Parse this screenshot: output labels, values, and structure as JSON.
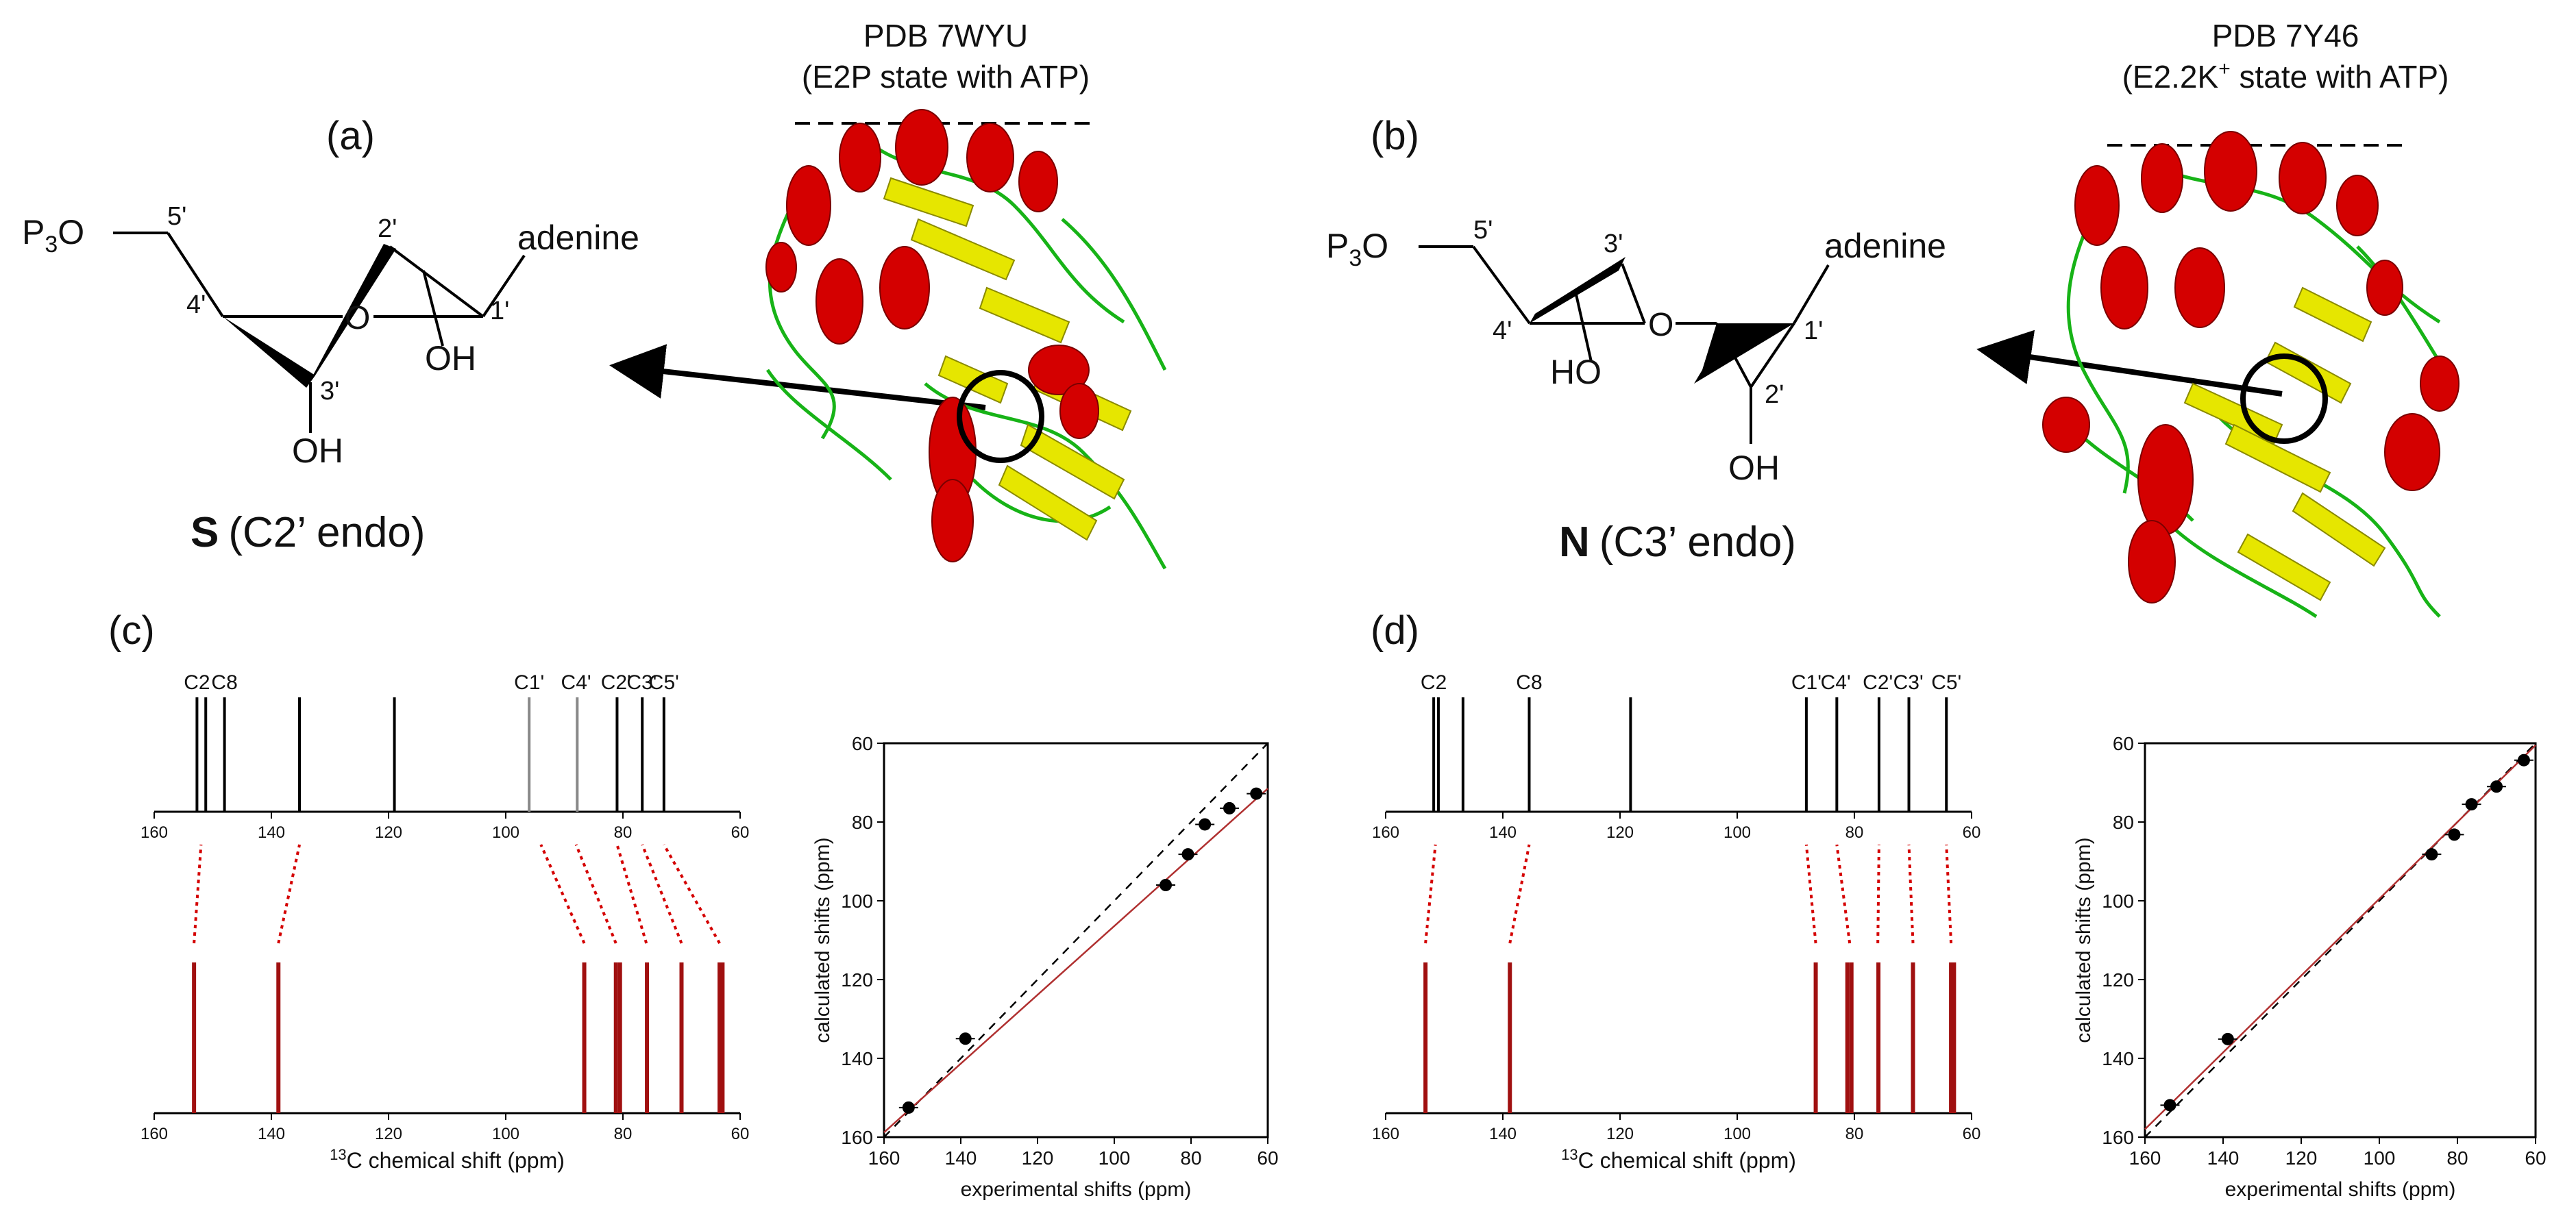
{
  "panels": {
    "a": {
      "label": "(a)",
      "pdb": "PDB 7WYU",
      "state": "(E2P state with ATP)",
      "conformation_letter": "S",
      "conformation_desc": "(C2’ endo)",
      "atoms": {
        "p3o": "P",
        "p3o_sub": "3",
        "p3o_o": "O",
        "c5": "5'",
        "c4": "4'",
        "c3": "3'",
        "c2": "2'",
        "c1": "1'",
        "ring_o": "O",
        "oh2": "OH",
        "oh3": "OH",
        "base": "adenine"
      }
    },
    "b": {
      "label": "(b)",
      "pdb": "PDB 7Y46",
      "state_pre": "(E2.2K",
      "state_sup": "+",
      "state_post": " state with ATP)",
      "conformation_letter": "N",
      "conformation_desc": "(C3’ endo)",
      "atoms": {
        "p3o": "P",
        "p3o_sub": "3",
        "p3o_o": "O",
        "c5": "5'",
        "c4": "4'",
        "c3": "3'",
        "c2": "2'",
        "c1": "1'",
        "ring_o": "O",
        "oh3": "HO",
        "oh2": "OH",
        "base": "adenine"
      }
    },
    "c": {
      "label": "(c)",
      "spectrum": {
        "top_sticks": [
          152.7,
          151.2,
          148.0,
          135.2,
          119.0,
          96.0,
          87.8,
          81.0,
          76.7,
          73.0
        ],
        "top_faint": [
          96.0,
          87.8
        ],
        "peak_labels": [
          {
            "text": "C2",
            "ppm": 152.7
          },
          {
            "text": "C8",
            "ppm": 148.0
          },
          {
            "text": "C1'",
            "ppm": 96.0
          },
          {
            "text": "C4'",
            "ppm": 88.0
          },
          {
            "text": "C2'",
            "ppm": 81.2
          },
          {
            "text": "C3'",
            "ppm": 76.8
          },
          {
            "text": "C5'",
            "ppm": 73.0
          }
        ],
        "bottom_sticks": [
          153.2,
          138.8,
          86.6,
          81.2,
          80.5,
          75.9,
          70.0,
          63.5,
          63.0
        ],
        "connectors": [
          [
            153.2,
            152.0
          ],
          [
            138.8,
            135.2
          ],
          [
            86.6,
            94.0
          ],
          [
            81.2,
            88.0
          ],
          [
            76.0,
            81.0
          ],
          [
            70.0,
            76.7
          ],
          [
            63.5,
            73.0
          ]
        ],
        "axis_ticks": [
          "160",
          "140",
          "120",
          "100",
          "80",
          "60"
        ],
        "xlabel_sup": "13",
        "xlabel": "C chemical shift (ppm)"
      },
      "correlation": {
        "xlabel": "experimental shifts",
        "xlabel_unit": "(ppm)",
        "ylabel": "calculated shifts (ppm)",
        "xlim": [
          160,
          60
        ],
        "ylim": [
          160,
          60
        ],
        "ticks": [
          "160",
          "140",
          "120",
          "100",
          "80",
          "60"
        ],
        "points": [
          [
            153.6,
            152.5
          ],
          [
            138.8,
            135.0
          ],
          [
            86.6,
            96.0
          ],
          [
            80.8,
            88.2
          ],
          [
            76.4,
            80.6
          ],
          [
            70.0,
            76.5
          ],
          [
            63.0,
            72.8
          ]
        ],
        "fit": {
          "x0": 160,
          "y0": 158.8,
          "x1": 60,
          "y1": 71.5
        }
      }
    },
    "d": {
      "label": "(d)",
      "spectrum": {
        "top_sticks": [
          151.8,
          151.0,
          146.8,
          135.5,
          118.2,
          88.2,
          83.0,
          75.8,
          70.7,
          64.3
        ],
        "peak_labels": [
          {
            "text": "C2",
            "ppm": 151.8
          },
          {
            "text": "C8",
            "ppm": 135.5
          },
          {
            "text": "C1'",
            "ppm": 88.2
          },
          {
            "text": "C4'",
            "ppm": 83.2
          },
          {
            "text": "C2'",
            "ppm": 76.0
          },
          {
            "text": "C3'",
            "ppm": 70.8
          },
          {
            "text": "C5'",
            "ppm": 64.3
          }
        ],
        "bottom_sticks": [
          153.2,
          138.8,
          86.6,
          81.2,
          80.5,
          75.9,
          70.0,
          63.5,
          63.0
        ],
        "connectors": [
          [
            153.2,
            151.5
          ],
          [
            138.8,
            135.5
          ],
          [
            86.6,
            88.2
          ],
          [
            80.8,
            83.0
          ],
          [
            76.0,
            75.8
          ],
          [
            70.0,
            70.7
          ],
          [
            63.5,
            64.3
          ]
        ],
        "axis_ticks": [
          "160",
          "140",
          "120",
          "100",
          "80",
          "60"
        ],
        "xlabel_sup": "13",
        "xlabel": "C chemical shift (ppm)"
      },
      "correlation": {
        "xlabel": "experimental shifts (ppm)",
        "ylabel": "calculated shifts (ppm)",
        "xlim": [
          160,
          60
        ],
        "ylim": [
          160,
          60
        ],
        "ticks": [
          "160",
          "140",
          "120",
          "100",
          "80",
          "60"
        ],
        "points": [
          [
            153.6,
            151.9
          ],
          [
            138.8,
            135.1
          ],
          [
            86.6,
            88.2
          ],
          [
            80.8,
            83.2
          ],
          [
            76.4,
            75.5
          ],
          [
            70.0,
            71.0
          ],
          [
            63.0,
            64.3
          ]
        ],
        "fit": {
          "x0": 160,
          "y0": 158.0,
          "x1": 60,
          "y1": 60.5
        }
      }
    }
  },
  "colors": {
    "helix": "#d40000",
    "sheet": "#e6e600",
    "loop": "#17b317",
    "experimental": "#a01010",
    "connector": "#d40000",
    "fit": "#b03030"
  }
}
